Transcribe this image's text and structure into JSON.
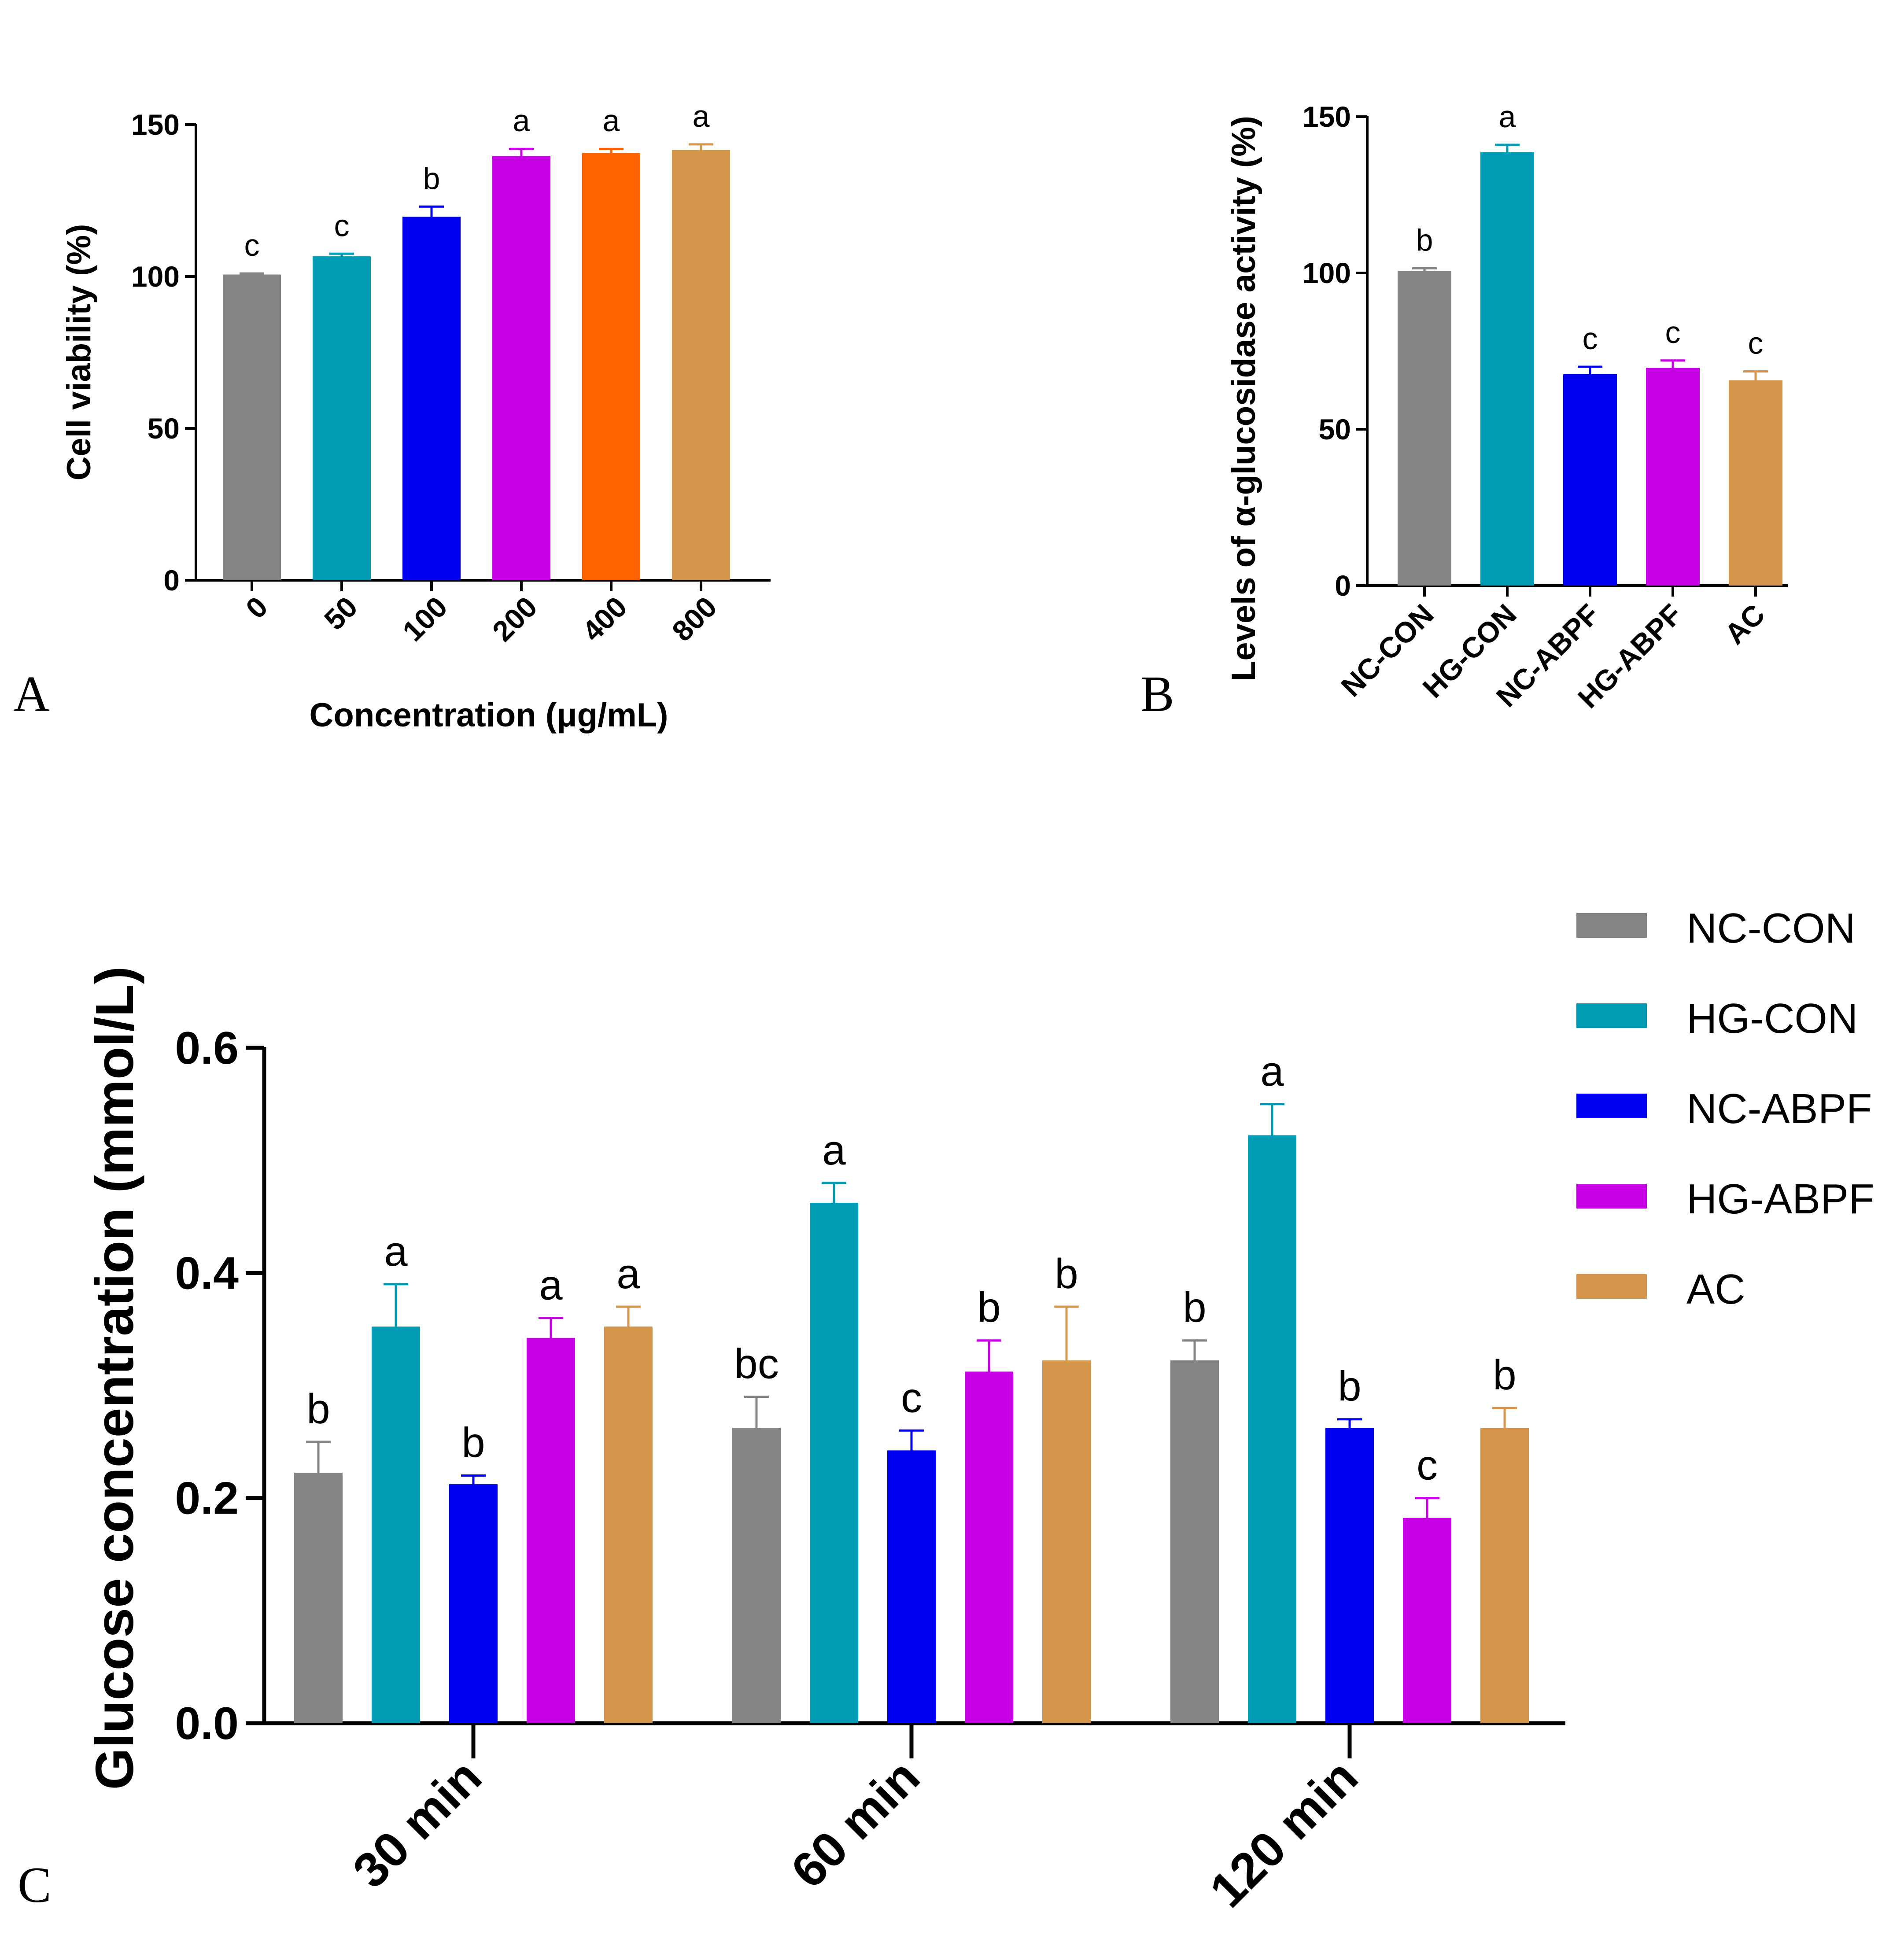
{
  "colors": {
    "NC-CON": "#848484",
    "HG-CON": "#009BB4",
    "NC-ABPF": "#0000F5",
    "HG-ABPF": "#C800E6",
    "AC": "#D4964B",
    "orange400": "#FF6400",
    "axis": "#000000"
  },
  "chart_data": [
    {
      "panel": "A",
      "type": "bar",
      "title": "",
      "xlabel": "Concentration (μg/mL)",
      "ylabel": "Cell viability (%)",
      "ylim": [
        0,
        150
      ],
      "yticks": [
        0,
        50,
        100,
        150
      ],
      "categories": [
        "0",
        "50",
        "100",
        "200",
        "400",
        "800"
      ],
      "values": [
        100,
        106,
        119,
        139,
        140,
        141
      ],
      "errors": [
        1,
        1.5,
        4,
        3,
        2,
        2.5
      ],
      "significance": [
        "c",
        "c",
        "b",
        "a",
        "a",
        "a"
      ],
      "bar_colors": [
        "#848484",
        "#009BB4",
        "#0000F5",
        "#C800E6",
        "#FF6400",
        "#D4964B"
      ]
    },
    {
      "panel": "B",
      "type": "bar",
      "title": "",
      "xlabel": "",
      "ylabel": "Levels of α-glucosidase activity (%)",
      "ylim": [
        0,
        150
      ],
      "yticks": [
        0,
        50,
        100,
        150
      ],
      "categories": [
        "NC-CON",
        "HG-CON",
        "NC-ABPF",
        "HG-ABPF",
        "AC"
      ],
      "values": [
        100,
        138,
        67,
        69,
        65
      ],
      "errors": [
        1.5,
        3,
        3,
        3,
        3.5
      ],
      "significance": [
        "b",
        "a",
        "c",
        "c",
        "c"
      ],
      "bar_colors": [
        "#848484",
        "#009BB4",
        "#0000F5",
        "#C800E6",
        "#D4964B"
      ]
    },
    {
      "panel": "C",
      "type": "bar",
      "title": "",
      "xlabel": "",
      "ylabel": "Glucose concentration (mmol/L)",
      "ylim": [
        0,
        0.6
      ],
      "yticks": [
        "0.0",
        "0.2",
        "0.4",
        "0.6"
      ],
      "categories": [
        "30 min",
        "60 min",
        "120 min"
      ],
      "legend": [
        "NC-CON",
        "HG-CON",
        "NC-ABPF",
        "HG-ABPF",
        "AC"
      ],
      "series": [
        {
          "name": "NC-CON",
          "values": [
            0.22,
            0.26,
            0.32
          ],
          "errors": [
            0.03,
            0.03,
            0.02
          ],
          "significance": [
            "b",
            "bc",
            "b"
          ]
        },
        {
          "name": "HG-CON",
          "values": [
            0.35,
            0.46,
            0.52
          ],
          "errors": [
            0.04,
            0.02,
            0.03
          ],
          "significance": [
            "a",
            "a",
            "a"
          ]
        },
        {
          "name": "NC-ABPF",
          "values": [
            0.21,
            0.24,
            0.26
          ],
          "errors": [
            0.01,
            0.02,
            0.01
          ],
          "significance": [
            "b",
            "c",
            "b"
          ]
        },
        {
          "name": "HG-ABPF",
          "values": [
            0.34,
            0.31,
            0.18
          ],
          "errors": [
            0.02,
            0.03,
            0.02
          ],
          "significance": [
            "a",
            "b",
            "c"
          ]
        },
        {
          "name": "AC",
          "values": [
            0.35,
            0.32,
            0.26
          ],
          "errors": [
            0.02,
            0.05,
            0.02
          ],
          "significance": [
            "a",
            "b",
            "b"
          ]
        }
      ]
    }
  ]
}
